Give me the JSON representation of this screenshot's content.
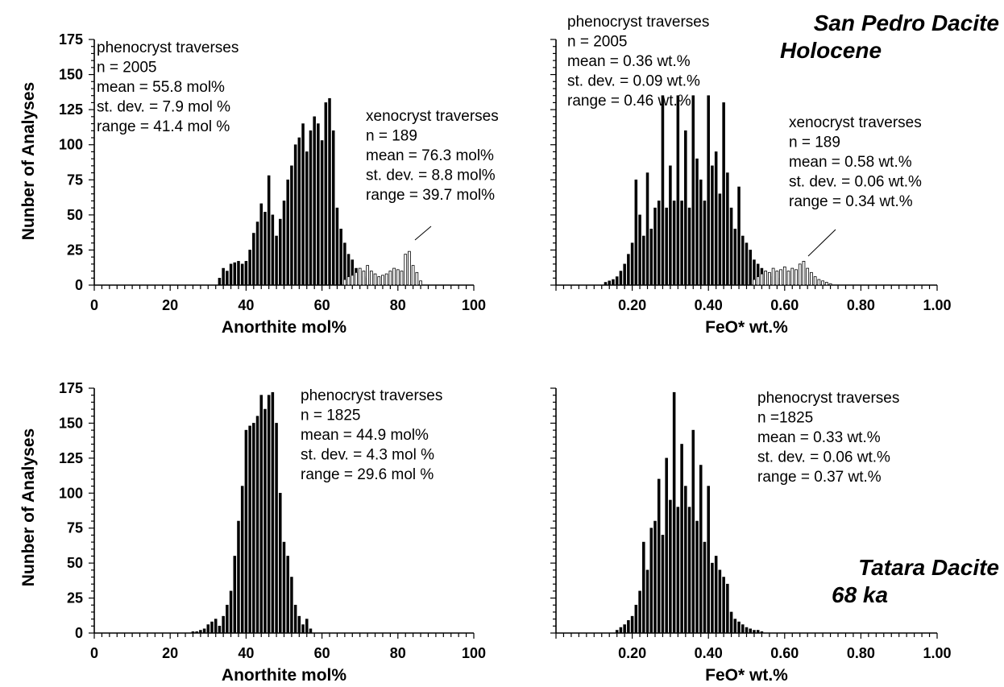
{
  "figure_labels": {
    "top_right_title_line1": "San Pedro Dacite",
    "top_right_title_line2": "Holocene",
    "bottom_right_title_line1": "Tatara Dacite",
    "bottom_right_title_line2": "68 ka",
    "shared_ylabel_top": "Nunber of Analyses",
    "shared_ylabel_bottom": "Nunber of Analyses"
  },
  "colors": {
    "phenocryst": "#000000",
    "xenocryst": "#ffffff",
    "axis": "#000000"
  },
  "chart_data": [
    {
      "type": "bar",
      "panel": "top-left",
      "xlabel": "Anorthite  mol%",
      "ylabel": "Nunber of Analyses",
      "xlim": [
        0,
        100
      ],
      "ylim": [
        0,
        175
      ],
      "xticks": [
        "0",
        "20",
        "40",
        "60",
        "80",
        "100"
      ],
      "yticks": [
        "0",
        "25",
        "50",
        "75",
        "100",
        "125",
        "150",
        "175"
      ],
      "bin_width": 1,
      "annotation": [
        "phenocryst traverses",
        "n = 2005",
        "mean = 55.8 mol%",
        "st. dev. = 7.9 mol %",
        "range = 41.4 mol %"
      ],
      "annotation2": [
        "xenocryst traverses",
        "n = 189",
        "mean = 76.3 mol%",
        "st. dev. = 8.8 mol%",
        "range = 39.7 mol%"
      ],
      "series": [
        {
          "name": "phenocryst traverses",
          "x": [
            33,
            34,
            35,
            36,
            37,
            38,
            39,
            40,
            41,
            42,
            43,
            44,
            45,
            46,
            47,
            48,
            49,
            50,
            51,
            52,
            53,
            54,
            55,
            56,
            57,
            58,
            59,
            60,
            61,
            62,
            63,
            64,
            65,
            66,
            67,
            68,
            69,
            70,
            71,
            72
          ],
          "values": [
            5,
            12,
            10,
            15,
            16,
            17,
            15,
            17,
            25,
            37,
            45,
            58,
            52,
            78,
            50,
            35,
            47,
            60,
            75,
            85,
            100,
            105,
            115,
            95,
            110,
            120,
            115,
            103,
            130,
            133,
            110,
            55,
            40,
            30,
            22,
            18,
            12,
            8,
            6,
            5
          ]
        },
        {
          "name": "xenocryst traverses",
          "x": [
            66,
            67,
            68,
            69,
            70,
            71,
            72,
            73,
            74,
            75,
            76,
            77,
            78,
            79,
            80,
            81,
            82,
            83,
            84,
            85,
            86
          ],
          "values": [
            4,
            6,
            7,
            9,
            12,
            10,
            14,
            10,
            8,
            6,
            7,
            8,
            10,
            12,
            11,
            10,
            22,
            24,
            14,
            9,
            3
          ]
        }
      ]
    },
    {
      "type": "bar",
      "panel": "top-right",
      "xlabel": "FeO* wt.%",
      "xlim": [
        0,
        1.0
      ],
      "ylim": [
        0,
        175
      ],
      "xticks": [
        "0.20",
        "0.40",
        "0.60",
        "0.80",
        "1.00"
      ],
      "bin_width": 0.01,
      "annotation": [
        "phenocryst traverses",
        "n = 2005",
        "mean = 0.36 wt.%",
        "st. dev. = 0.09 wt.%",
        "range = 0.46 wt.%"
      ],
      "annotation2": [
        "xenocryst traverses",
        "n = 189",
        "mean = 0.58 wt.%",
        "st. dev. = 0.06 wt.%",
        "range = 0.34 wt.%"
      ],
      "series": [
        {
          "name": "phenocryst traverses",
          "x": [
            0.13,
            0.14,
            0.15,
            0.16,
            0.17,
            0.18,
            0.19,
            0.2,
            0.21,
            0.22,
            0.23,
            0.24,
            0.25,
            0.26,
            0.27,
            0.28,
            0.29,
            0.3,
            0.31,
            0.32,
            0.33,
            0.34,
            0.35,
            0.36,
            0.37,
            0.38,
            0.39,
            0.4,
            0.41,
            0.42,
            0.43,
            0.44,
            0.45,
            0.46,
            0.47,
            0.48,
            0.49,
            0.5,
            0.51,
            0.52,
            0.53,
            0.54,
            0.55,
            0.56,
            0.57,
            0.58
          ],
          "values": [
            2,
            3,
            4,
            6,
            10,
            15,
            22,
            30,
            75,
            50,
            35,
            80,
            40,
            55,
            60,
            135,
            55,
            85,
            60,
            135,
            60,
            110,
            55,
            135,
            90,
            75,
            60,
            135,
            85,
            95,
            65,
            130,
            80,
            55,
            40,
            70,
            35,
            30,
            25,
            18,
            15,
            12,
            10,
            8,
            6,
            5
          ]
        },
        {
          "name": "xenocryst traverses",
          "x": [
            0.52,
            0.53,
            0.54,
            0.55,
            0.56,
            0.57,
            0.58,
            0.59,
            0.6,
            0.61,
            0.62,
            0.63,
            0.64,
            0.65,
            0.66,
            0.67,
            0.68,
            0.69,
            0.7,
            0.71,
            0.72
          ],
          "values": [
            4,
            6,
            8,
            10,
            9,
            12,
            10,
            11,
            13,
            10,
            12,
            11,
            15,
            17,
            12,
            9,
            6,
            4,
            3,
            2,
            1
          ]
        }
      ]
    },
    {
      "type": "bar",
      "panel": "bottom-left",
      "xlabel": "Anorthite  mol%",
      "ylabel": "Nunber of Analyses",
      "xlim": [
        0,
        100
      ],
      "ylim": [
        0,
        175
      ],
      "xticks": [
        "0",
        "20",
        "40",
        "60",
        "80",
        "100"
      ],
      "yticks": [
        "0",
        "25",
        "50",
        "75",
        "100",
        "125",
        "150",
        "175"
      ],
      "bin_width": 1,
      "annotation": [
        "phenocryst traverses",
        "n = 1825",
        "mean = 44.9 mol%",
        "st. dev. = 4.3 mol %",
        "range = 29.6 mol %"
      ],
      "series": [
        {
          "name": "phenocryst traverses",
          "x": [
            26,
            27,
            28,
            29,
            30,
            31,
            32,
            33,
            34,
            35,
            36,
            37,
            38,
            39,
            40,
            41,
            42,
            43,
            44,
            45,
            46,
            47,
            48,
            49,
            50,
            51,
            52,
            53,
            54,
            55,
            56,
            57
          ],
          "values": [
            1,
            1,
            2,
            3,
            6,
            8,
            10,
            5,
            12,
            20,
            30,
            55,
            80,
            105,
            145,
            148,
            150,
            155,
            170,
            160,
            170,
            172,
            150,
            100,
            65,
            55,
            40,
            20,
            12,
            6,
            10,
            3
          ]
        }
      ]
    },
    {
      "type": "bar",
      "panel": "bottom-right",
      "xlabel": "FeO* wt.%",
      "xlim": [
        0,
        1.0
      ],
      "ylim": [
        0,
        175
      ],
      "xticks": [
        "0.20",
        "0.40",
        "0.60",
        "0.80",
        "1.00"
      ],
      "bin_width": 0.01,
      "annotation": [
        "phenocryst traverses",
        "n =1825",
        "mean = 0.33 wt.%",
        "st. dev. = 0.06 wt.%",
        "range = 0.37 wt.%"
      ],
      "series": [
        {
          "name": "phenocryst traverses",
          "x": [
            0.16,
            0.17,
            0.18,
            0.19,
            0.2,
            0.21,
            0.22,
            0.23,
            0.24,
            0.25,
            0.26,
            0.27,
            0.28,
            0.29,
            0.3,
            0.31,
            0.32,
            0.33,
            0.34,
            0.35,
            0.36,
            0.37,
            0.38,
            0.39,
            0.4,
            0.41,
            0.42,
            0.43,
            0.44,
            0.45,
            0.46,
            0.47,
            0.48,
            0.49,
            0.5,
            0.51,
            0.52,
            0.53,
            0.54
          ],
          "values": [
            2,
            4,
            6,
            9,
            12,
            20,
            30,
            65,
            45,
            75,
            80,
            110,
            70,
            125,
            95,
            172,
            90,
            135,
            105,
            90,
            145,
            80,
            120,
            65,
            105,
            50,
            55,
            45,
            40,
            35,
            15,
            10,
            8,
            6,
            4,
            3,
            2,
            2,
            1
          ]
        }
      ]
    }
  ]
}
